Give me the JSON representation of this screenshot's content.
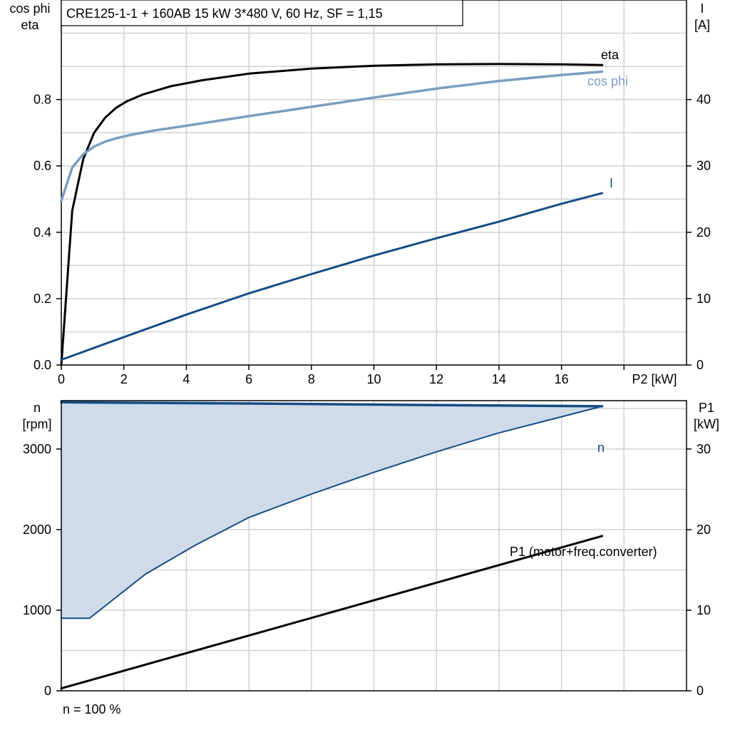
{
  "title": "CRE125-1-1 + 160AB   15 kW   3*480 V, 60 Hz, SF = 1,15",
  "footnote": "n = 100 %",
  "colors": {
    "eta": "#000000",
    "cos_phi": "#7b9dc1",
    "current": "#154c85",
    "speed": "#154c85",
    "speed_band_fill": "#cfdbe8",
    "p1": "#000000",
    "grid": "#d2d2d2"
  },
  "chart_data": [
    {
      "type": "line",
      "panel": "top",
      "xlabel": "P2 [kW]",
      "ylabel_left": [
        "cos phi",
        "eta"
      ],
      "ylabel_right": [
        "I",
        "[A]"
      ],
      "xlim": [
        0,
        20
      ],
      "ylim_left": [
        0,
        1.1
      ],
      "ylim_right": [
        0,
        55
      ],
      "x_ticks": [
        0,
        2,
        4,
        6,
        8,
        10,
        12,
        14,
        16
      ],
      "y_ticks_left": [
        "0.0",
        "0.2",
        "0.4",
        "0.6",
        "0.8"
      ],
      "y_ticks_right": [
        "0",
        "10",
        "20",
        "30",
        "40"
      ],
      "grid": true,
      "series": [
        {
          "name": "eta",
          "axis": "left",
          "x": [
            0,
            0.35,
            0.7,
            1.05,
            1.4,
            1.75,
            2.1,
            2.6,
            3.5,
            4.5,
            6,
            8,
            10,
            12,
            14,
            16,
            17.3
          ],
          "y": [
            0.0,
            0.465,
            0.62,
            0.7,
            0.745,
            0.775,
            0.795,
            0.815,
            0.84,
            0.858,
            0.878,
            0.893,
            0.902,
            0.906,
            0.907,
            0.906,
            0.904
          ]
        },
        {
          "name": "cos phi",
          "axis": "left",
          "x": [
            0,
            0.35,
            0.7,
            1.05,
            1.4,
            1.75,
            2.2,
            3,
            4,
            6,
            8,
            10,
            12,
            14,
            16,
            17.3
          ],
          "y": [
            0.495,
            0.595,
            0.635,
            0.658,
            0.673,
            0.683,
            0.693,
            0.707,
            0.721,
            0.75,
            0.778,
            0.806,
            0.833,
            0.856,
            0.874,
            0.884
          ]
        },
        {
          "name": "I",
          "axis": "right",
          "x": [
            0,
            2,
            4,
            6,
            8,
            10,
            12,
            14,
            16,
            17.3
          ],
          "y": [
            0.8,
            4.2,
            7.6,
            10.8,
            13.7,
            16.5,
            19.1,
            21.6,
            24.3,
            25.9
          ]
        }
      ]
    },
    {
      "type": "area",
      "panel": "bottom",
      "ylabel_left": [
        "n",
        "[rpm]"
      ],
      "ylabel_right": [
        "P1",
        "[kW]"
      ],
      "xlim": [
        0,
        20
      ],
      "ylim_left": [
        0,
        3600
      ],
      "ylim_right": [
        0,
        36
      ],
      "y_ticks_left": [
        "0",
        "1000",
        "2000",
        "3000"
      ],
      "y_ticks_right": [
        "0",
        "10",
        "20",
        "30"
      ],
      "grid": true,
      "series": [
        {
          "name": "n",
          "axis": "left",
          "x": [
            0,
            6,
            12,
            17.3
          ],
          "y": [
            3580,
            3565,
            3545,
            3530
          ]
        },
        {
          "name": "n min",
          "axis": "left",
          "x": [
            0,
            0.9,
            2.7,
            4.3,
            6,
            8,
            10,
            12,
            14,
            16,
            17.3
          ],
          "y": [
            900,
            900,
            1450,
            1810,
            2150,
            2440,
            2710,
            2965,
            3200,
            3400,
            3530
          ]
        },
        {
          "name": "P1 (motor+freq.converter)",
          "axis": "right",
          "x": [
            0,
            17.3
          ],
          "y": [
            0.3,
            19.2
          ]
        }
      ]
    }
  ]
}
